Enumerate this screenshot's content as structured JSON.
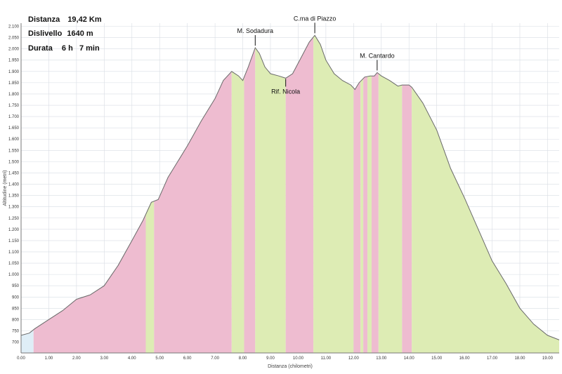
{
  "stats": {
    "distance_label": "Distanza",
    "distance_value": "19,42 Km",
    "climb_label": "Dislivello",
    "climb_value": "1640 m",
    "duration_label": "Durata",
    "duration_value": "6 h   7 min"
  },
  "colors": {
    "climb": "#eebcd0",
    "descent": "#ddecb4",
    "flat": "#dfeef7",
    "line": "#6a6a6a",
    "grid": "#d8dde4"
  },
  "chart_data": {
    "type": "area",
    "xlabel": "Distanza (chilometri)",
    "ylabel": "Altitudine (metri)",
    "xlim": [
      0,
      19.42
    ],
    "ylim": [
      652,
      2114
    ],
    "x_ticks": [
      "0.00",
      "1.00",
      "2.00",
      "3.00",
      "4.00",
      "5.00",
      "6.00",
      "7.00",
      "8.00",
      "9.00",
      "10.00",
      "11.00",
      "12.00",
      "13.00",
      "14.00",
      "15.00",
      "16.00",
      "17.00",
      "18.00",
      "19.00"
    ],
    "y_ticks": [
      "700",
      "750",
      "800",
      "850",
      "900",
      "950",
      "1.000",
      "1.050",
      "1.100",
      "1.150",
      "1.200",
      "1.250",
      "1.300",
      "1.350",
      "1.400",
      "1.450",
      "1.500",
      "1.550",
      "1.600",
      "1.650",
      "1.700",
      "1.750",
      "1.800",
      "1.850",
      "1.900",
      "1.950",
      "2.000",
      "2.050",
      "2.100"
    ],
    "profile": [
      [
        0.0,
        730
      ],
      [
        0.3,
        740
      ],
      [
        0.5,
        760
      ],
      [
        1.0,
        800
      ],
      [
        1.5,
        840
      ],
      [
        2.0,
        890
      ],
      [
        2.5,
        910
      ],
      [
        3.0,
        950
      ],
      [
        3.5,
        1040
      ],
      [
        4.0,
        1150
      ],
      [
        4.4,
        1240
      ],
      [
        4.7,
        1320
      ],
      [
        4.95,
        1332
      ],
      [
        5.3,
        1430
      ],
      [
        6.0,
        1570
      ],
      [
        6.5,
        1680
      ],
      [
        7.0,
        1780
      ],
      [
        7.3,
        1860
      ],
      [
        7.6,
        1900
      ],
      [
        7.85,
        1880
      ],
      [
        8.0,
        1860
      ],
      [
        8.2,
        1920
      ],
      [
        8.45,
        2005
      ],
      [
        8.6,
        1980
      ],
      [
        8.8,
        1920
      ],
      [
        9.0,
        1890
      ],
      [
        9.3,
        1880
      ],
      [
        9.55,
        1870
      ],
      [
        9.8,
        1890
      ],
      [
        10.1,
        1960
      ],
      [
        10.4,
        2030
      ],
      [
        10.6,
        2060
      ],
      [
        10.8,
        2020
      ],
      [
        11.0,
        1950
      ],
      [
        11.3,
        1890
      ],
      [
        11.6,
        1860
      ],
      [
        11.9,
        1840
      ],
      [
        12.05,
        1820
      ],
      [
        12.2,
        1850
      ],
      [
        12.4,
        1875
      ],
      [
        12.6,
        1880
      ],
      [
        12.75,
        1880
      ],
      [
        12.85,
        1895
      ],
      [
        13.0,
        1880
      ],
      [
        13.3,
        1860
      ],
      [
        13.6,
        1835
      ],
      [
        13.75,
        1840
      ],
      [
        14.0,
        1840
      ],
      [
        14.1,
        1830
      ],
      [
        14.5,
        1760
      ],
      [
        15.0,
        1640
      ],
      [
        15.5,
        1470
      ],
      [
        16.0,
        1340
      ],
      [
        16.5,
        1200
      ],
      [
        17.0,
        1060
      ],
      [
        17.5,
        960
      ],
      [
        18.0,
        850
      ],
      [
        18.5,
        780
      ],
      [
        19.0,
        730
      ],
      [
        19.42,
        710
      ]
    ],
    "segments": [
      [
        0.0,
        0.45,
        "flat"
      ],
      [
        0.45,
        4.5,
        "climb"
      ],
      [
        4.5,
        4.8,
        "descent"
      ],
      [
        4.8,
        7.6,
        "climb"
      ],
      [
        7.6,
        8.05,
        "descent"
      ],
      [
        8.05,
        8.45,
        "climb"
      ],
      [
        8.45,
        9.55,
        "descent"
      ],
      [
        9.55,
        10.55,
        "climb"
      ],
      [
        10.55,
        12.0,
        "descent"
      ],
      [
        12.0,
        12.25,
        "climb"
      ],
      [
        12.25,
        12.35,
        "descent"
      ],
      [
        12.35,
        12.5,
        "climb"
      ],
      [
        12.5,
        12.65,
        "descent"
      ],
      [
        12.65,
        12.9,
        "climb"
      ],
      [
        12.9,
        13.75,
        "descent"
      ],
      [
        13.75,
        14.1,
        "climb"
      ],
      [
        14.1,
        19.42,
        "descent"
      ]
    ],
    "annotations": [
      {
        "text": "M. Sodadura",
        "x": 8.45,
        "y": 2005,
        "point": "top"
      },
      {
        "text": "C.ma di Piazzo",
        "x": 10.6,
        "y": 2060,
        "point": "top"
      },
      {
        "text": "M. Cantardo",
        "x": 12.85,
        "y": 1895,
        "point": "top"
      },
      {
        "text": "Rif. Nicola",
        "x": 9.55,
        "y": 1870,
        "point": "bottom"
      }
    ]
  }
}
